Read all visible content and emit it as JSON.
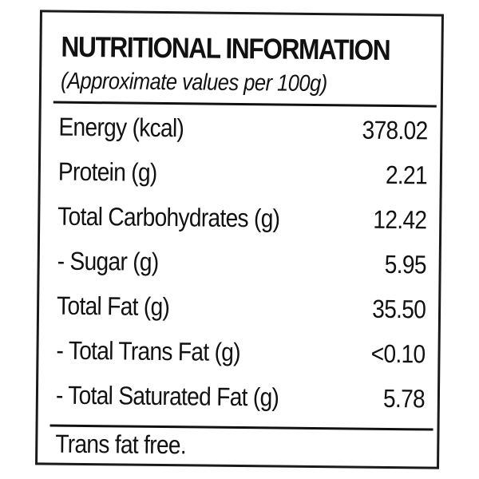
{
  "label": {
    "title": "NUTRITIONAL INFORMATION",
    "subtitle": "(Approximate values per 100g)",
    "rows": [
      {
        "name": "Energy (kcal)",
        "value": "378.02"
      },
      {
        "name": "Protein (g)",
        "value": "2.21"
      },
      {
        "name": "Total Carbohydrates (g)",
        "value": "12.42"
      },
      {
        "name": "- Sugar (g)",
        "value": "5.95"
      },
      {
        "name": "Total Fat (g)",
        "value": "35.50"
      },
      {
        "name": "- Total Trans Fat (g)",
        "value": "<0.10"
      },
      {
        "name": "- Total Saturated Fat (g)",
        "value": "5.78"
      }
    ],
    "footer": "Trans fat free."
  },
  "colors": {
    "ink": "#111111",
    "background": "#ffffff"
  }
}
